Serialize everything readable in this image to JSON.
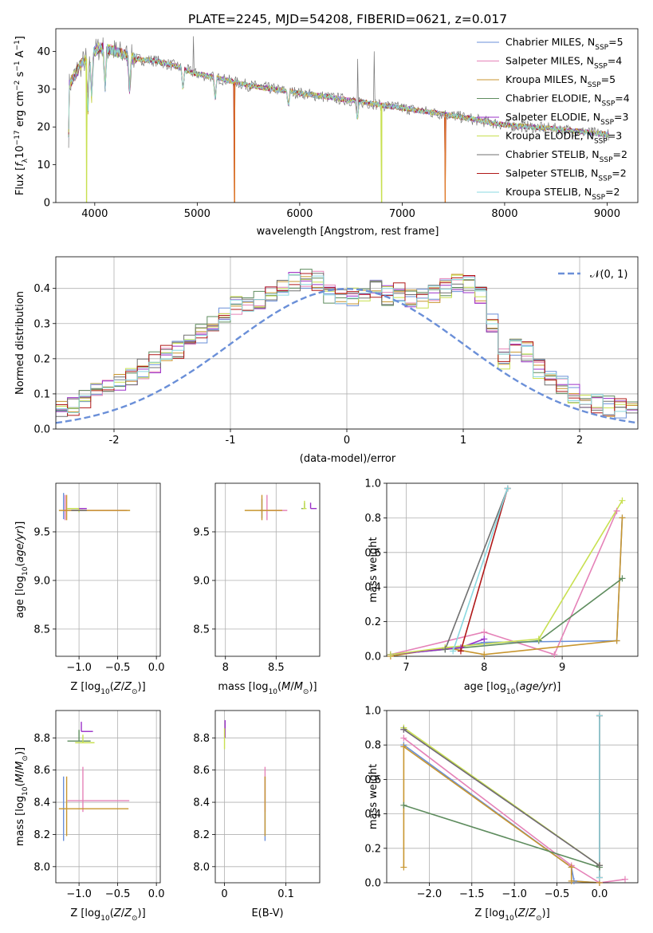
{
  "title": "PLATE=2245, MJD=54208, FIBERID=0621, z=0.017",
  "colors": {
    "Chabrier MILES": "#6a8fd8",
    "Salpeter MILES": "#e582b8",
    "Kroupa MILES": "#c8962f",
    "Chabrier ELODIE": "#5e8c5e",
    "Salpeter ELODIE": "#9b30c8",
    "Kroupa ELODIE": "#c8e050",
    "Chabrier STELIB": "#707070",
    "Salpeter STELIB": "#b01818",
    "Kroupa STELIB": "#8ad8e0",
    "model_orange": "#e07a28",
    "gauss": "#6a8fd8"
  },
  "chart_data": [
    {
      "id": "spectrum",
      "type": "line",
      "title": "PLATE=2245, MJD=54208, FIBERID=0621, z=0.017",
      "xlabel": "wavelength [Angstrom, rest frame]",
      "ylabel": "Flux [f_λ 10^-17 erg cm^-2 s^-1 A^-1]",
      "xlim": [
        3620,
        9300
      ],
      "ylim": [
        0,
        46
      ],
      "xticks": [
        4000,
        5000,
        6000,
        7000,
        8000,
        9000
      ],
      "yticks": [
        0,
        10,
        20,
        30,
        40
      ],
      "grid": false,
      "legend_position": "top-right",
      "legend": [
        {
          "name": "Chabrier MILES",
          "nssp": "5"
        },
        {
          "name": "Salpeter MILES",
          "nssp": "4"
        },
        {
          "name": "Kroupa MILES",
          "nssp": "5"
        },
        {
          "name": "Chabrier ELODIE",
          "nssp": "4"
        },
        {
          "name": "Salpeter ELODIE",
          "nssp": "3"
        },
        {
          "name": "Kroupa ELODIE",
          "nssp": "3"
        },
        {
          "name": "Chabrier STELIB",
          "nssp": "2"
        },
        {
          "name": "Salpeter STELIB",
          "nssp": "2"
        },
        {
          "name": "Kroupa STELIB",
          "nssp": "2"
        }
      ],
      "continuum": [
        [
          3750,
          31
        ],
        [
          3850,
          36
        ],
        [
          3950,
          39
        ],
        [
          4050,
          41
        ],
        [
          4200,
          40
        ],
        [
          4400,
          38
        ],
        [
          4600,
          37.5
        ],
        [
          4800,
          36
        ],
        [
          5000,
          34
        ],
        [
          5200,
          33
        ],
        [
          5500,
          31
        ],
        [
          6000,
          29
        ],
        [
          6500,
          27
        ],
        [
          7000,
          25
        ],
        [
          7500,
          23
        ],
        [
          8000,
          20.5
        ],
        [
          8500,
          19.5
        ],
        [
          9000,
          18
        ]
      ],
      "absorption_lines": [
        [
          3934,
          14
        ],
        [
          3969,
          12
        ],
        [
          4102,
          10
        ],
        [
          4340,
          9
        ],
        [
          4861,
          6
        ],
        [
          5175,
          6
        ],
        [
          5890,
          4
        ],
        [
          6563,
          5
        ]
      ],
      "drops_to_zero": [
        [
          3920,
          "Kroupa ELODIE"
        ],
        [
          5365,
          "model_orange"
        ],
        [
          6800,
          "Kroupa ELODIE"
        ],
        [
          7420,
          "model_orange"
        ]
      ],
      "spikes": [
        [
          4960,
          44
        ],
        [
          6563,
          38
        ],
        [
          6730,
          40
        ],
        [
          6800,
          26
        ]
      ]
    },
    {
      "id": "residuals",
      "type": "histogram",
      "xlabel": "(data-model)/error",
      "ylabel": "Normed distribution",
      "xlim": [
        -2.5,
        2.5
      ],
      "ylim": [
        0,
        0.49
      ],
      "xticks": [
        -2,
        -1,
        0,
        1,
        2
      ],
      "yticks": [
        0.0,
        0.1,
        0.2,
        0.3,
        0.4
      ],
      "grid": true,
      "bin_width": 0.1,
      "base_values": [
        0.035,
        0.04,
        0.045,
        0.05,
        0.055,
        0.06,
        0.06,
        0.08,
        0.1,
        0.12,
        0.14,
        0.155,
        0.17,
        0.19,
        0.21,
        0.23,
        0.25,
        0.27,
        0.3,
        0.33,
        0.35,
        0.36,
        0.37,
        0.38,
        0.4,
        0.42,
        0.43,
        0.42,
        0.38,
        0.37,
        0.38,
        0.39,
        0.4,
        0.38,
        0.39,
        0.37,
        0.37,
        0.38,
        0.4,
        0.42,
        0.41,
        0.38,
        0.3,
        0.2,
        0.23,
        0.22,
        0.17,
        0.15,
        0.12,
        0.1,
        0.085,
        0.075,
        0.065,
        0.06,
        0.05,
        0.045,
        0.04,
        0.035,
        0.03,
        0.025
      ],
      "gaussian": {
        "name": "N(0,1)",
        "label": "𝒩(0, 1)",
        "style": "dashed"
      },
      "legend_position": "top-right"
    },
    {
      "id": "age_vs_Z",
      "type": "errorbar",
      "xlabel": "Z [log10(Z/Z⊙)]",
      "ylabel": "age  [log10(age/yr)]",
      "xlim": [
        -1.3,
        0.05
      ],
      "ylim": [
        8.22,
        10.0
      ],
      "xticks": [
        -1.0,
        -0.5,
        0.0
      ],
      "xtick_labels": [
        "−1.0",
        "−0.5",
        "0.0"
      ],
      "yticks": [
        8.5,
        9.0,
        9.5
      ],
      "grid": true,
      "points": [
        {
          "series": "Chabrier MILES",
          "x": -1.2,
          "y": 9.78,
          "xerr": [
            0.0,
            0.0
          ],
          "yerr": [
            0.15,
            0.12
          ]
        },
        {
          "series": "Salpeter MILES",
          "x": -1.18,
          "y": 9.72,
          "xerr": [
            0.02,
            0.8
          ],
          "yerr": [
            0.1,
            0.16
          ]
        },
        {
          "series": "Kroupa MILES",
          "x": -1.16,
          "y": 9.72,
          "xerr": [
            0.1,
            0.82
          ],
          "yerr": [
            0.1,
            0.16
          ]
        },
        {
          "series": "Chabrier ELODIE",
          "x": -1.05,
          "y": 9.74,
          "xerr": [
            0.1,
            0.1
          ],
          "yerr": [
            0.0,
            0.0
          ]
        },
        {
          "series": "Kroupa ELODIE",
          "x": -1.0,
          "y": 9.74,
          "xerr": [
            0.15,
            0.05
          ],
          "yerr": [
            0.04,
            0.0
          ]
        },
        {
          "series": "Salpeter ELODIE",
          "x": -0.95,
          "y": 9.74,
          "xerr": [
            0.05,
            0.05
          ],
          "yerr": [
            0.0,
            0.0
          ]
        },
        {
          "series": "Chabrier STELIB",
          "x": -1.0,
          "y": 9.72,
          "xerr": [
            0.1,
            0.1
          ],
          "yerr": [
            0.0,
            0.0
          ]
        }
      ]
    },
    {
      "id": "age_vs_mass",
      "type": "errorbar",
      "xlabel": "mass [log10(M/M⊙)]",
      "ylabel": "",
      "xlim": [
        7.9,
        8.93
      ],
      "ylim": [
        8.22,
        10.0
      ],
      "xticks": [
        8.0,
        8.5
      ],
      "yticks": [
        8.5,
        9.0,
        9.5
      ],
      "grid": true,
      "points": [
        {
          "series": "Chabrier MILES",
          "x": 8.36,
          "y": 9.72,
          "xerr": [
            0.02,
            0.0
          ],
          "yerr": [
            0.08,
            0.12
          ]
        },
        {
          "series": "Salpeter MILES",
          "x": 8.41,
          "y": 9.72,
          "xerr": [
            0.07,
            0.2
          ],
          "yerr": [
            0.1,
            0.16
          ]
        },
        {
          "series": "Kroupa MILES",
          "x": 8.36,
          "y": 9.72,
          "xerr": [
            0.17,
            0.2
          ],
          "yerr": [
            0.1,
            0.16
          ]
        },
        {
          "series": "Chabrier ELODIE",
          "x": 8.78,
          "y": 9.74,
          "xerr": [
            0.03,
            0.0
          ],
          "yerr": [
            0.0,
            0.06
          ]
        },
        {
          "series": "Salpeter ELODIE",
          "x": 8.84,
          "y": 9.74,
          "xerr": [
            0.0,
            0.06
          ],
          "yerr": [
            0.0,
            0.06
          ]
        },
        {
          "series": "Kroupa ELODIE",
          "x": 8.78,
          "y": 9.74,
          "xerr": [
            0.02,
            0.02
          ],
          "yerr": [
            0.0,
            0.08
          ]
        }
      ]
    },
    {
      "id": "mass_weight_vs_age",
      "type": "line",
      "xlabel": "age  [log10(age/yr)]",
      "ylabel": "mass weight",
      "xlim": [
        6.75,
        9.97
      ],
      "ylim": [
        0,
        1
      ],
      "xticks": [
        7,
        8,
        9
      ],
      "yticks": [
        0.0,
        0.2,
        0.4,
        0.6,
        0.8,
        1.0
      ],
      "grid": true,
      "series": [
        {
          "name": "Chabrier MILES",
          "points": [
            [
              6.8,
              0.01
            ],
            [
              7.5,
              0.04
            ],
            [
              8.0,
              0.08
            ],
            [
              9.7,
              0.09
            ],
            [
              9.77,
              0.8
            ]
          ]
        },
        {
          "name": "Salpeter MILES",
          "points": [
            [
              6.8,
              0.01
            ],
            [
              8.0,
              0.14
            ],
            [
              8.9,
              0.01
            ],
            [
              9.7,
              0.84
            ]
          ]
        },
        {
          "name": "Kroupa MILES",
          "points": [
            [
              6.8,
              0.0
            ],
            [
              7.5,
              0.05
            ],
            [
              8.0,
              0.01
            ],
            [
              9.7,
              0.09
            ],
            [
              9.77,
              0.8
            ]
          ]
        },
        {
          "name": "Chabrier ELODIE",
          "points": [
            [
              6.8,
              0.01
            ],
            [
              7.5,
              0.04
            ],
            [
              8.7,
              0.09
            ],
            [
              9.77,
              0.45
            ]
          ]
        },
        {
          "name": "Salpeter ELODIE",
          "points": [
            [
              6.8,
              0.01
            ],
            [
              7.7,
              0.05
            ],
            [
              8.0,
              0.1
            ]
          ]
        },
        {
          "name": "Kroupa ELODIE",
          "points": [
            [
              6.8,
              0.01
            ],
            [
              7.5,
              0.05
            ],
            [
              8.7,
              0.1
            ],
            [
              9.77,
              0.9
            ]
          ]
        },
        {
          "name": "Chabrier STELIB",
          "points": [
            [
              7.5,
              0.04
            ],
            [
              8.3,
              0.97
            ]
          ]
        },
        {
          "name": "Salpeter STELIB",
          "points": [
            [
              7.7,
              0.03
            ],
            [
              8.3,
              0.97
            ]
          ]
        },
        {
          "name": "Kroupa STELIB",
          "points": [
            [
              7.6,
              0.03
            ],
            [
              8.3,
              0.97
            ]
          ]
        }
      ]
    },
    {
      "id": "mass_vs_Z",
      "type": "errorbar",
      "xlabel": "Z [log10(Z/Z⊙)]",
      "ylabel": "mass [log10(M/M⊙)]",
      "xlim": [
        -1.3,
        0.05
      ],
      "ylim": [
        7.9,
        8.97
      ],
      "xticks": [
        -1.0,
        -0.5,
        0.0
      ],
      "xtick_labels": [
        "−1.0",
        "−0.5",
        "0.0"
      ],
      "yticks": [
        8.0,
        8.2,
        8.4,
        8.6,
        8.8
      ],
      "grid": true,
      "points": [
        {
          "series": "Chabrier MILES",
          "x": -1.2,
          "y": 8.36,
          "xerr": [
            0.0,
            0.0
          ],
          "yerr": [
            0.2,
            0.2
          ]
        },
        {
          "series": "Salpeter MILES",
          "x": -0.95,
          "y": 8.41,
          "xerr": [
            0.2,
            0.6
          ],
          "yerr": [
            0.07,
            0.21
          ]
        },
        {
          "series": "Kroupa MILES",
          "x": -1.16,
          "y": 8.36,
          "xerr": [
            0.1,
            0.8
          ],
          "yerr": [
            0.17,
            0.2
          ]
        },
        {
          "series": "Chabrier ELODIE",
          "x": -1.0,
          "y": 8.78,
          "xerr": [
            0.15,
            0.15
          ],
          "yerr": [
            0.0,
            0.07
          ]
        },
        {
          "series": "Salpeter ELODIE",
          "x": -0.97,
          "y": 8.84,
          "xerr": [
            0.0,
            0.15
          ],
          "yerr": [
            0.0,
            0.06
          ]
        },
        {
          "series": "Kroupa ELODIE",
          "x": -0.95,
          "y": 8.77,
          "xerr": [
            0.1,
            0.15
          ],
          "yerr": [
            0.0,
            0.05
          ]
        }
      ]
    },
    {
      "id": "mass_vs_EBV",
      "type": "errorbar",
      "xlabel": "E(B-V)",
      "ylabel": "",
      "xlim": [
        -0.015,
        0.155
      ],
      "ylim": [
        7.9,
        8.97
      ],
      "xticks": [
        0.0,
        0.1
      ],
      "yticks": [
        8.0,
        8.2,
        8.4,
        8.6,
        8.8
      ],
      "grid": true,
      "points": [
        {
          "series": "Chabrier MILES",
          "x": 0.066,
          "y": 8.36,
          "xerr": [
            0,
            0
          ],
          "yerr": [
            0.2,
            0.2
          ]
        },
        {
          "series": "Salpeter MILES",
          "x": 0.066,
          "y": 8.41,
          "xerr": [
            0,
            0
          ],
          "yerr": [
            0.07,
            0.21
          ]
        },
        {
          "series": "Kroupa MILES",
          "x": 0.066,
          "y": 8.36,
          "xerr": [
            0,
            0
          ],
          "yerr": [
            0.17,
            0.2
          ]
        },
        {
          "series": "Salpeter ELODIE",
          "x": 0.001,
          "y": 8.84,
          "xerr": [
            0,
            0
          ],
          "yerr": [
            0.04,
            0.07
          ]
        },
        {
          "series": "Kroupa ELODIE",
          "x": 0.0,
          "y": 8.78,
          "xerr": [
            0,
            0
          ],
          "yerr": [
            0.05,
            0.08
          ]
        }
      ]
    },
    {
      "id": "mass_weight_vs_Z",
      "type": "line",
      "xlabel": "Z [log10(Z/Z⊙)]",
      "ylabel": "mass weight",
      "xlim": [
        -2.5,
        0.45
      ],
      "ylim": [
        0,
        1
      ],
      "xticks": [
        -2.0,
        -1.5,
        -1.0,
        -0.5,
        0.0
      ],
      "xtick_labels": [
        "−2.0",
        "−1.5",
        "−1.0",
        "−0.5",
        "0.0"
      ],
      "yticks": [
        0.0,
        0.2,
        0.4,
        0.6,
        0.8,
        1.0
      ],
      "grid": true,
      "series": [
        {
          "name": "Chabrier MILES",
          "points": [
            [
              -2.3,
              0.8
            ],
            [
              -0.33,
              0.09
            ],
            [
              -0.3,
              0.01
            ],
            [
              0.0,
              0.0
            ]
          ]
        },
        {
          "name": "Salpeter MILES",
          "points": [
            [
              -2.3,
              0.84
            ],
            [
              -0.33,
              0.1
            ],
            [
              0.0,
              0.0
            ],
            [
              0.3,
              0.02
            ]
          ]
        },
        {
          "name": "Kroupa MILES",
          "points": [
            [
              -2.3,
              0.09
            ],
            [
              -2.3,
              0.79
            ],
            [
              -0.33,
              0.09
            ],
            [
              -0.33,
              0.01
            ],
            [
              0.0,
              0.0
            ]
          ]
        },
        {
          "name": "Chabrier ELODIE",
          "points": [
            [
              -2.3,
              0.45
            ],
            [
              0.0,
              0.09
            ],
            [
              0.0,
              0.1
            ]
          ]
        },
        {
          "name": "Salpeter ELODIE",
          "points": [
            [
              -2.3,
              0.89
            ],
            [
              0.0,
              0.1
            ]
          ]
        },
        {
          "name": "Kroupa ELODIE",
          "points": [
            [
              -2.3,
              0.9
            ],
            [
              0.0,
              0.1
            ]
          ]
        },
        {
          "name": "Chabrier STELIB",
          "points": [
            [
              -2.3,
              0.89
            ],
            [
              0.0,
              0.1
            ],
            [
              0.0,
              0.97
            ]
          ]
        },
        {
          "name": "Salpeter STELIB",
          "points": [
            [
              0.0,
              0.03
            ],
            [
              0.0,
              0.97
            ]
          ]
        },
        {
          "name": "Kroupa STELIB",
          "points": [
            [
              0.0,
              0.03
            ],
            [
              0.0,
              0.97
            ]
          ]
        }
      ]
    }
  ]
}
